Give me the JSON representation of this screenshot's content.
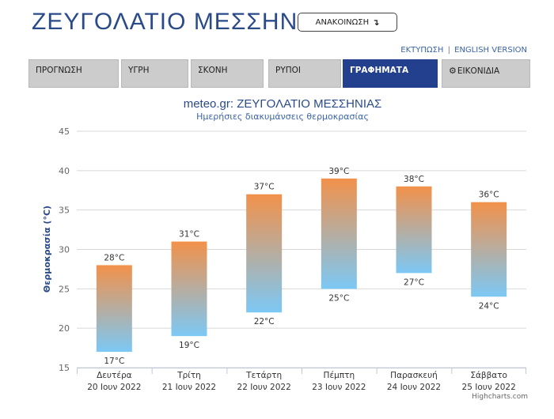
{
  "header": {
    "title": "ΖΕΥΓΟΛΑΤΙΟ ΜΕΣΣΗΝΙΑΣ",
    "announce_label": "ΑΝΑΚΟΙΝΩΣΗ",
    "announce_icon": "arrow-down-icon",
    "print_link": "ΕΚΤΥΠΩΣΗ",
    "link_separator": "|",
    "english_link": "ENGLISH VERSION"
  },
  "tabs": [
    {
      "label": "ΠΡΟΓΝΩΣΗ",
      "active": false
    },
    {
      "label": "ΥΓΡΗ",
      "active": false
    },
    {
      "label": "ΣΚΟΝΗ",
      "active": false
    },
    {
      "label": "ΡΥΠΟΙ",
      "active": false
    },
    {
      "label": "ΓΡΑΦΗΜΑΤΑ",
      "active": true
    },
    {
      "label": "ΕΙΚΟΝΙΔΙΑ",
      "active": false,
      "icon": "gear-icon"
    }
  ],
  "chart_data": {
    "type": "bar",
    "subtype": "columnrange",
    "title": "meteo.gr: ΖΕΥΓΟΛΑΤΙΟ ΜΕΣΣΗΝΙΑΣ",
    "subtitle": "Ημερήσιες διακυμάνσεις θερμοκρασίας",
    "xlabel": "",
    "ylabel": "Θερμοκρασία (°C)",
    "ylim": [
      15,
      45
    ],
    "yticks": [
      "15",
      "20",
      "25",
      "30",
      "35",
      "40",
      "45"
    ],
    "grid": true,
    "categories": [
      {
        "day": "Δευτέρα",
        "date": "20 Ιουν 2022"
      },
      {
        "day": "Τρίτη",
        "date": "21 Ιουν 2022"
      },
      {
        "day": "Τετάρτη",
        "date": "22 Ιουν 2022"
      },
      {
        "day": "Πέμπτη",
        "date": "23 Ιουν 2022"
      },
      {
        "day": "Παρασκευή",
        "date": "24 Ιουν 2022"
      },
      {
        "day": "Σάββατο",
        "date": "25 Ιουν 2022"
      }
    ],
    "low": [
      17,
      19,
      22,
      25,
      27,
      24
    ],
    "high": [
      28,
      31,
      37,
      39,
      38,
      36
    ],
    "low_labels": [
      "17°C",
      "19°C",
      "22°C",
      "25°C",
      "27°C",
      "24°C"
    ],
    "high_labels": [
      "28°C",
      "31°C",
      "37°C",
      "39°C",
      "38°C",
      "36°C"
    ],
    "colors": {
      "top": "#f2914a",
      "bottom": "#7cc8f5",
      "title": "#2a4a8a",
      "subtitle": "#3a64a8",
      "grid": "#d8d8d8"
    },
    "credits": "Highcharts.com"
  }
}
